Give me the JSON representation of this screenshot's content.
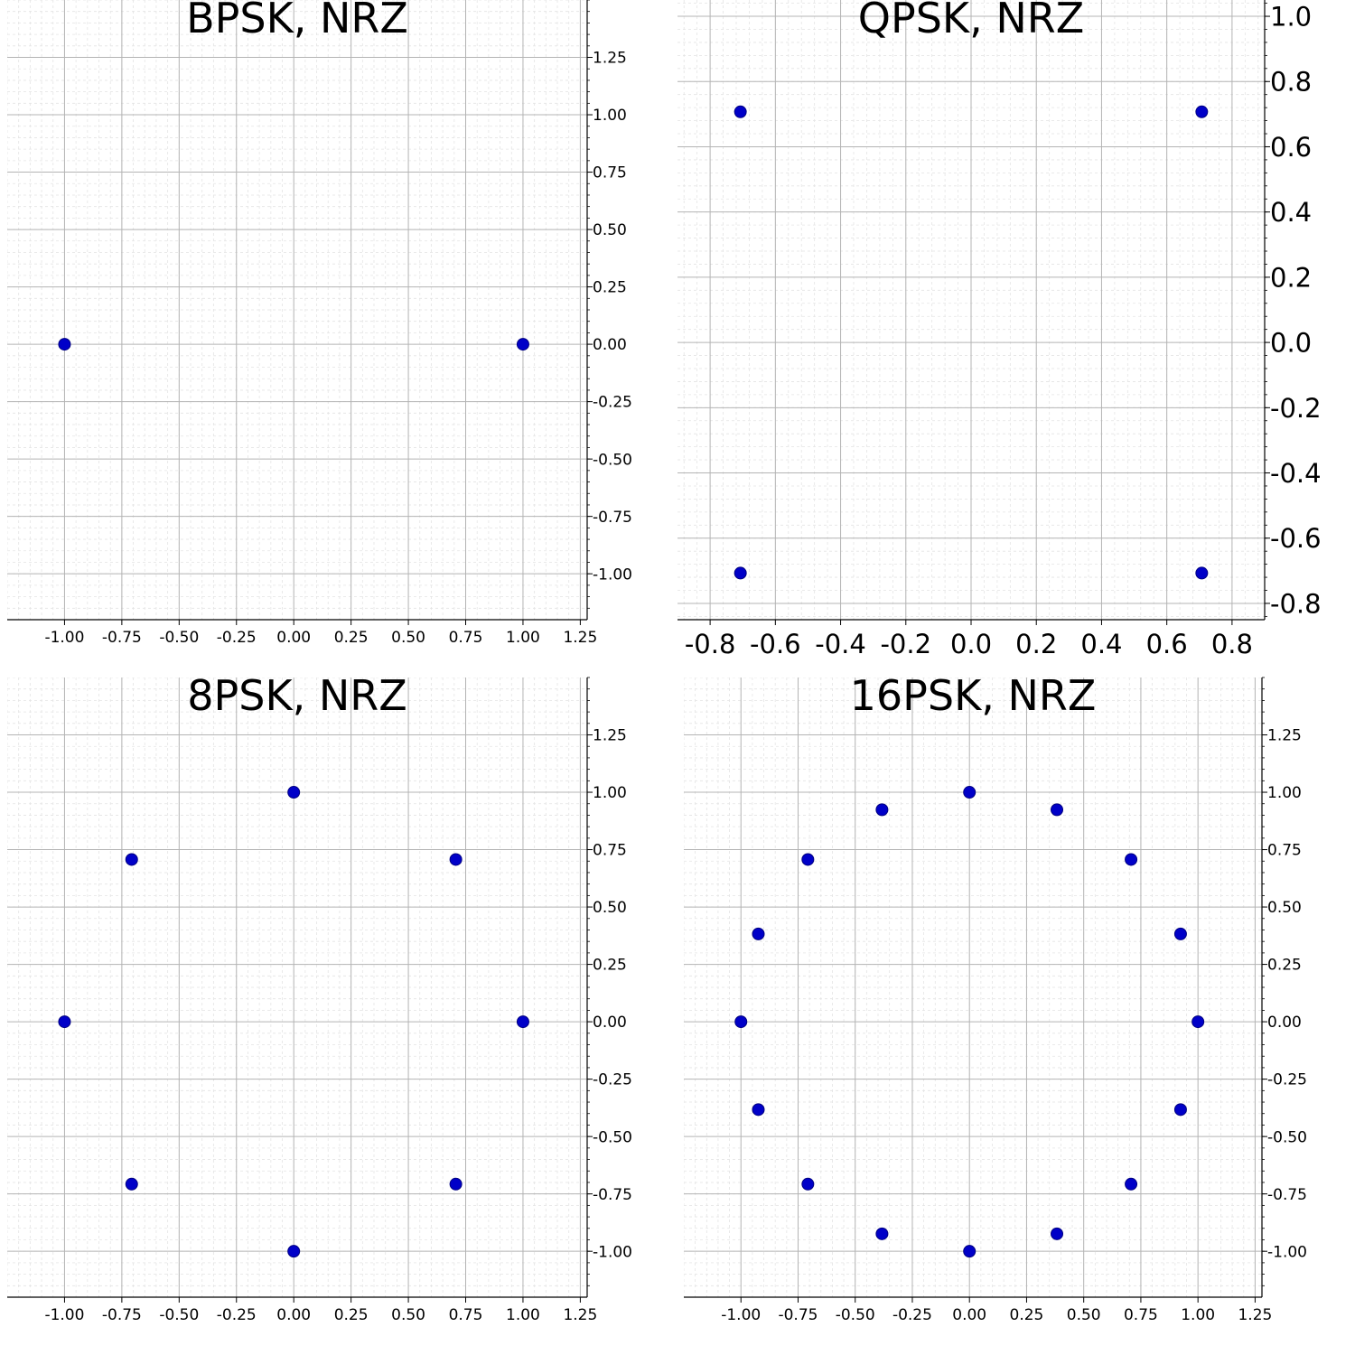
{
  "marker_color": "#0000c8",
  "marker_edge_color": "#000080",
  "grid_color_major": "#b4b4b4",
  "grid_color_minor": "#e4e4e4",
  "chart_data": [
    {
      "type": "scatter",
      "title": "BPSK, NRZ",
      "xlabel": "",
      "ylabel": "",
      "xlim": [
        -1.25,
        1.28
      ],
      "ylim": [
        -1.2,
        1.5
      ],
      "xticks": [
        "-1.00",
        "-0.75",
        "-0.50",
        "-0.25",
        "0.00",
        "0.25",
        "0.50",
        "0.75",
        "1.00",
        "1.25"
      ],
      "yticks": [
        "-1.00",
        "-0.75",
        "-0.50",
        "-0.25",
        "0.00",
        "0.25",
        "0.50",
        "0.75",
        "1.00",
        "1.25"
      ],
      "grid": true,
      "points": [
        {
          "x": -1.0,
          "y": 0.0
        },
        {
          "x": 1.0,
          "y": 0.0
        }
      ]
    },
    {
      "type": "scatter",
      "title": "QPSK, NRZ",
      "xlabel": "",
      "ylabel": "",
      "xlim": [
        -0.9,
        0.9
      ],
      "ylim": [
        -0.85,
        1.05
      ],
      "xticks": [
        "-0.8",
        "-0.6",
        "-0.4",
        "-0.2",
        "0.0",
        "0.2",
        "0.4",
        "0.6",
        "0.8"
      ],
      "yticks": [
        "-0.8",
        "-0.6",
        "-0.4",
        "-0.2",
        "0.0",
        "0.2",
        "0.4",
        "0.6",
        "0.8",
        "1.0"
      ],
      "grid": true,
      "points": [
        {
          "x": -0.7071,
          "y": 0.7071
        },
        {
          "x": 0.7071,
          "y": 0.7071
        },
        {
          "x": -0.7071,
          "y": -0.7071
        },
        {
          "x": 0.7071,
          "y": -0.7071
        }
      ]
    },
    {
      "type": "scatter",
      "title": "8PSK, NRZ",
      "xlabel": "",
      "ylabel": "",
      "xlim": [
        -1.25,
        1.28
      ],
      "ylim": [
        -1.2,
        1.5
      ],
      "xticks": [
        "-1.00",
        "-0.75",
        "-0.50",
        "-0.25",
        "0.00",
        "0.25",
        "0.50",
        "0.75",
        "1.00",
        "1.25"
      ],
      "yticks": [
        "-1.00",
        "-0.75",
        "-0.50",
        "-0.25",
        "0.00",
        "0.25",
        "0.50",
        "0.75",
        "1.00",
        "1.25"
      ],
      "grid": true,
      "points": [
        {
          "x": 1.0,
          "y": 0.0
        },
        {
          "x": 0.7071,
          "y": 0.7071
        },
        {
          "x": 0.0,
          "y": 1.0
        },
        {
          "x": -0.7071,
          "y": 0.7071
        },
        {
          "x": -1.0,
          "y": 0.0
        },
        {
          "x": -0.7071,
          "y": -0.7071
        },
        {
          "x": 0.0,
          "y": -1.0
        },
        {
          "x": 0.7071,
          "y": -0.7071
        }
      ]
    },
    {
      "type": "scatter",
      "title": "16PSK, NRZ",
      "xlabel": "",
      "ylabel": "",
      "xlim": [
        -1.25,
        1.28
      ],
      "ylim": [
        -1.2,
        1.5
      ],
      "xticks": [
        "-1.00",
        "-0.75",
        "-0.50",
        "-0.25",
        "0.00",
        "0.25",
        "0.50",
        "0.75",
        "1.00",
        "1.25"
      ],
      "yticks": [
        "-1.00",
        "-0.75",
        "-0.50",
        "-0.25",
        "0.00",
        "0.25",
        "0.50",
        "0.75",
        "1.00",
        "1.25"
      ],
      "grid": true,
      "points": [
        {
          "x": 1.0,
          "y": 0.0
        },
        {
          "x": 0.9239,
          "y": 0.3827
        },
        {
          "x": 0.7071,
          "y": 0.7071
        },
        {
          "x": 0.3827,
          "y": 0.9239
        },
        {
          "x": 0.0,
          "y": 1.0
        },
        {
          "x": -0.3827,
          "y": 0.9239
        },
        {
          "x": -0.7071,
          "y": 0.7071
        },
        {
          "x": -0.9239,
          "y": 0.3827
        },
        {
          "x": -1.0,
          "y": 0.0
        },
        {
          "x": -0.9239,
          "y": -0.3827
        },
        {
          "x": -0.7071,
          "y": -0.7071
        },
        {
          "x": -0.3827,
          "y": -0.9239
        },
        {
          "x": 0.0,
          "y": -1.0
        },
        {
          "x": 0.3827,
          "y": -0.9239
        },
        {
          "x": 0.7071,
          "y": -0.7071
        },
        {
          "x": 0.9239,
          "y": -0.3827
        }
      ]
    }
  ]
}
